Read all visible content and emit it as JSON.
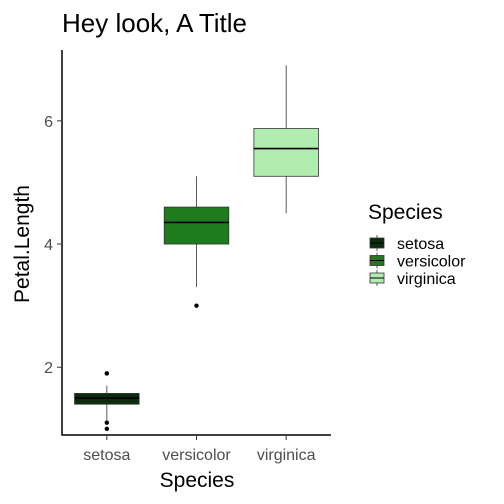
{
  "chart_data": {
    "type": "boxplot",
    "title": "Hey look, A Title",
    "xlabel": "Species",
    "ylabel": "Petal.Length",
    "categories": [
      "setosa",
      "versicolor",
      "virginica"
    ],
    "ylim": [
      0.9,
      7.15
    ],
    "yticks": [
      2,
      4,
      6
    ],
    "series": [
      {
        "name": "setosa",
        "color": "#0d2b0d",
        "min": 1.1,
        "q1": 1.4,
        "median": 1.5,
        "q3": 1.575,
        "max": 1.7,
        "outliers": [
          1.0,
          1.1,
          1.9,
          1.9
        ]
      },
      {
        "name": "versicolor",
        "color": "#1e7c1e",
        "min": 3.3,
        "q1": 4.0,
        "median": 4.35,
        "q3": 4.6,
        "max": 5.1,
        "outliers": [
          3.0
        ]
      },
      {
        "name": "virginica",
        "color": "#b2edb0",
        "min": 4.5,
        "q1": 5.1,
        "median": 5.55,
        "q3": 5.875,
        "max": 6.9,
        "outliers": []
      }
    ],
    "legend": {
      "title": "Species",
      "position": "right"
    },
    "grid": false
  }
}
